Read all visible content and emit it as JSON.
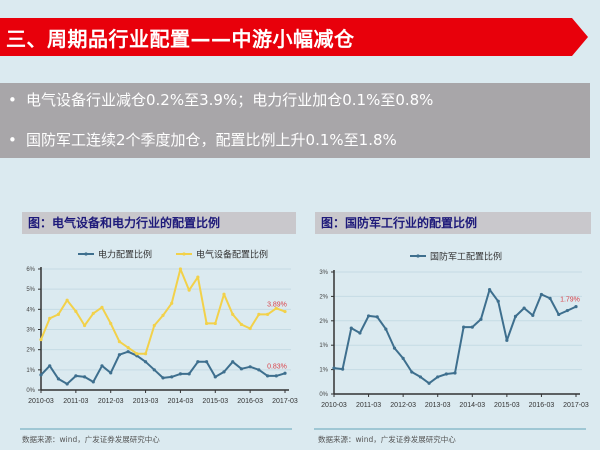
{
  "header": {
    "title": "三、周期品行业配置——中游小幅减仓",
    "accent": "#e8000b"
  },
  "bullets": [
    {
      "text": "电气设备行业减仓0.2%至3.9%；电力行业加仓0.1%至0.8%"
    },
    {
      "text": "国防军工连续2个季度加仓，配置比例上升0.1%至1.8%"
    }
  ],
  "bullet_symbol": "•",
  "panels": [
    {
      "title": "图：电气设备和电力行业的配置比例",
      "source": "数据来源：wind，广发证券发展研究中心"
    },
    {
      "title": "图：国防军工行业的配置比例",
      "source": "数据来源：wind，广发证券发展研究中心"
    }
  ],
  "chart_data": [
    {
      "type": "line",
      "title": "图：电气设备和电力行业的配置比例",
      "xlabel": "",
      "ylabel": "",
      "x_ticks": [
        "2010-03",
        "2011-03",
        "2012-03",
        "2013-03",
        "2014-03",
        "2015-03",
        "2016-03",
        "2017-03"
      ],
      "y_ticks": [
        "0%",
        "1%",
        "2%",
        "3%",
        "4%",
        "5%",
        "6%"
      ],
      "y_tick_values": [
        0,
        1,
        2,
        3,
        4,
        5,
        6
      ],
      "ylim": [
        0,
        6
      ],
      "grid": true,
      "legend": "top-center",
      "x": [
        "2010-03",
        "2010-06",
        "2010-09",
        "2010-12",
        "2011-03",
        "2011-06",
        "2011-09",
        "2011-12",
        "2012-03",
        "2012-06",
        "2012-09",
        "2012-12",
        "2013-03",
        "2013-06",
        "2013-09",
        "2013-12",
        "2014-03",
        "2014-06",
        "2014-09",
        "2014-12",
        "2015-03",
        "2015-06",
        "2015-09",
        "2015-12",
        "2016-03",
        "2016-06",
        "2016-09",
        "2016-12",
        "2017-03"
      ],
      "series": [
        {
          "name": "电力配置比例",
          "color": "#3e6f8e",
          "values": [
            0.75,
            1.2,
            0.55,
            0.3,
            0.7,
            0.65,
            0.4,
            1.2,
            0.85,
            1.75,
            1.9,
            1.7,
            1.4,
            1.0,
            0.6,
            0.65,
            0.8,
            0.8,
            1.4,
            1.4,
            0.65,
            0.9,
            1.4,
            1.05,
            1.15,
            1.0,
            0.7,
            0.7,
            0.83
          ],
          "end_label": "0.83%"
        },
        {
          "name": "电气设备配置比例",
          "color": "#f2d14a",
          "values": [
            2.5,
            3.55,
            3.75,
            4.45,
            3.9,
            3.2,
            3.8,
            4.1,
            3.3,
            2.4,
            2.1,
            1.8,
            1.8,
            3.2,
            3.7,
            4.3,
            6.0,
            4.95,
            5.6,
            3.3,
            3.3,
            4.75,
            3.75,
            3.25,
            3.05,
            3.75,
            3.75,
            4.05,
            3.89
          ],
          "end_label": "3.89%"
        }
      ]
    },
    {
      "type": "line",
      "title": "图：国防军工行业的配置比例",
      "xlabel": "",
      "ylabel": "",
      "x_ticks": [
        "2010-03",
        "2011-03",
        "2012-03",
        "2013-03",
        "2014-03",
        "2015-03",
        "2016-03",
        "2017-03"
      ],
      "y_ticks": [
        "0%",
        "1%",
        "1%",
        "2%",
        "2%",
        "3%"
      ],
      "y_tick_values": [
        0,
        0.5,
        1.0,
        1.5,
        2.0,
        2.5
      ],
      "ylim": [
        0,
        2.5
      ],
      "grid": true,
      "legend": "top-center",
      "x": [
        "2010-03",
        "2010-06",
        "2010-09",
        "2010-12",
        "2011-03",
        "2011-06",
        "2011-09",
        "2011-12",
        "2012-03",
        "2012-06",
        "2012-09",
        "2012-12",
        "2013-03",
        "2013-06",
        "2013-09",
        "2013-12",
        "2014-03",
        "2014-06",
        "2014-09",
        "2014-12",
        "2015-03",
        "2015-06",
        "2015-09",
        "2015-12",
        "2016-03",
        "2016-06",
        "2016-09",
        "2016-12",
        "2017-03"
      ],
      "series": [
        {
          "name": "国防军工配置比例",
          "color": "#3e6f8e",
          "values": [
            0.53,
            0.51,
            1.35,
            1.25,
            1.6,
            1.58,
            1.33,
            0.94,
            0.73,
            0.45,
            0.35,
            0.22,
            0.35,
            0.41,
            0.43,
            1.37,
            1.37,
            1.53,
            2.14,
            1.9,
            1.1,
            1.59,
            1.76,
            1.61,
            2.04,
            1.96,
            1.63,
            1.71,
            1.79
          ],
          "end_label": "1.79%"
        }
      ]
    }
  ],
  "colors": {
    "label_red": "#d9434a",
    "grid": "#c5dbe4",
    "axis": "#333333",
    "bullet_bg": "#a8a6a9",
    "panel_title_bg": "#c9c8cc",
    "panel_title_text": "#1e1a7a"
  }
}
